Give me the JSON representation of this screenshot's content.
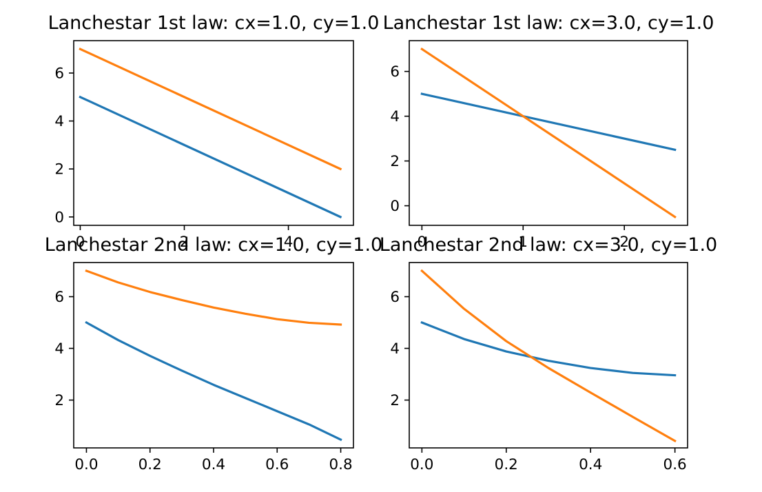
{
  "chart_data": [
    {
      "type": "line",
      "title": "Lanchestar 1st law: cx=1.0, cy=1.0",
      "xlabel": "",
      "ylabel": "",
      "xlim": [
        -0.125,
        5.25
      ],
      "ylim": [
        -0.35,
        7.35
      ],
      "xticks": [
        0,
        2,
        4
      ],
      "yticks": [
        0,
        2,
        4,
        6
      ],
      "grid": false,
      "series": [
        {
          "color": "#1f77b4",
          "x": [
            0,
            5
          ],
          "values": [
            5,
            0
          ]
        },
        {
          "color": "#ff7f0e",
          "x": [
            0,
            5
          ],
          "values": [
            7,
            2
          ]
        }
      ]
    },
    {
      "type": "line",
      "title": "Lanchestar 1st law: cx=3.0, cy=1.0",
      "xlabel": "",
      "ylabel": "",
      "xlim": [
        -0.125,
        2.625
      ],
      "ylim": [
        -0.875,
        7.375
      ],
      "xticks": [
        0,
        1,
        2
      ],
      "yticks": [
        0,
        2,
        4,
        6
      ],
      "grid": false,
      "series": [
        {
          "color": "#1f77b4",
          "x": [
            0,
            2.5
          ],
          "values": [
            5,
            2.5
          ]
        },
        {
          "color": "#ff7f0e",
          "x": [
            0,
            2.5
          ],
          "values": [
            7,
            -0.5
          ]
        }
      ]
    },
    {
      "type": "line",
      "title": "Lanchestar 2nd law: cx=1.0, cy=1.0",
      "xlabel": "",
      "ylabel": "",
      "xlim": [
        -0.04,
        0.84
      ],
      "ylim": [
        0.15,
        7.32
      ],
      "xticks": [
        0.0,
        0.2,
        0.4,
        0.6,
        0.8
      ],
      "yticks": [
        2,
        4,
        6
      ],
      "grid": false,
      "series": [
        {
          "color": "#1f77b4",
          "x": [
            0,
            0.1,
            0.2,
            0.3,
            0.4,
            0.5,
            0.6,
            0.7,
            0.8
          ],
          "values": [
            5.0,
            4.32,
            3.71,
            3.14,
            2.59,
            2.08,
            1.57,
            1.06,
            0.47
          ]
        },
        {
          "color": "#ff7f0e",
          "x": [
            0,
            0.1,
            0.2,
            0.3,
            0.4,
            0.5,
            0.6,
            0.7,
            0.8
          ],
          "values": [
            7.0,
            6.55,
            6.18,
            5.87,
            5.58,
            5.34,
            5.13,
            4.99,
            4.92
          ]
        }
      ]
    },
    {
      "type": "line",
      "title": "Lanchestar 2nd law: cx=3.0, cy=1.0",
      "xlabel": "",
      "ylabel": "",
      "xlim": [
        -0.03,
        0.63
      ],
      "ylim": [
        0.15,
        7.32
      ],
      "xticks": [
        0.0,
        0.2,
        0.4,
        0.6
      ],
      "yticks": [
        2,
        4,
        6
      ],
      "grid": false,
      "series": [
        {
          "color": "#1f77b4",
          "x": [
            0,
            0.1,
            0.2,
            0.3,
            0.4,
            0.5,
            0.6
          ],
          "values": [
            5.0,
            4.36,
            3.88,
            3.52,
            3.24,
            3.05,
            2.96
          ]
        },
        {
          "color": "#ff7f0e",
          "x": [
            0,
            0.1,
            0.2,
            0.3,
            0.4,
            0.5,
            0.6
          ],
          "values": [
            7.0,
            5.53,
            4.28,
            3.24,
            2.29,
            1.35,
            0.42
          ]
        }
      ]
    }
  ]
}
